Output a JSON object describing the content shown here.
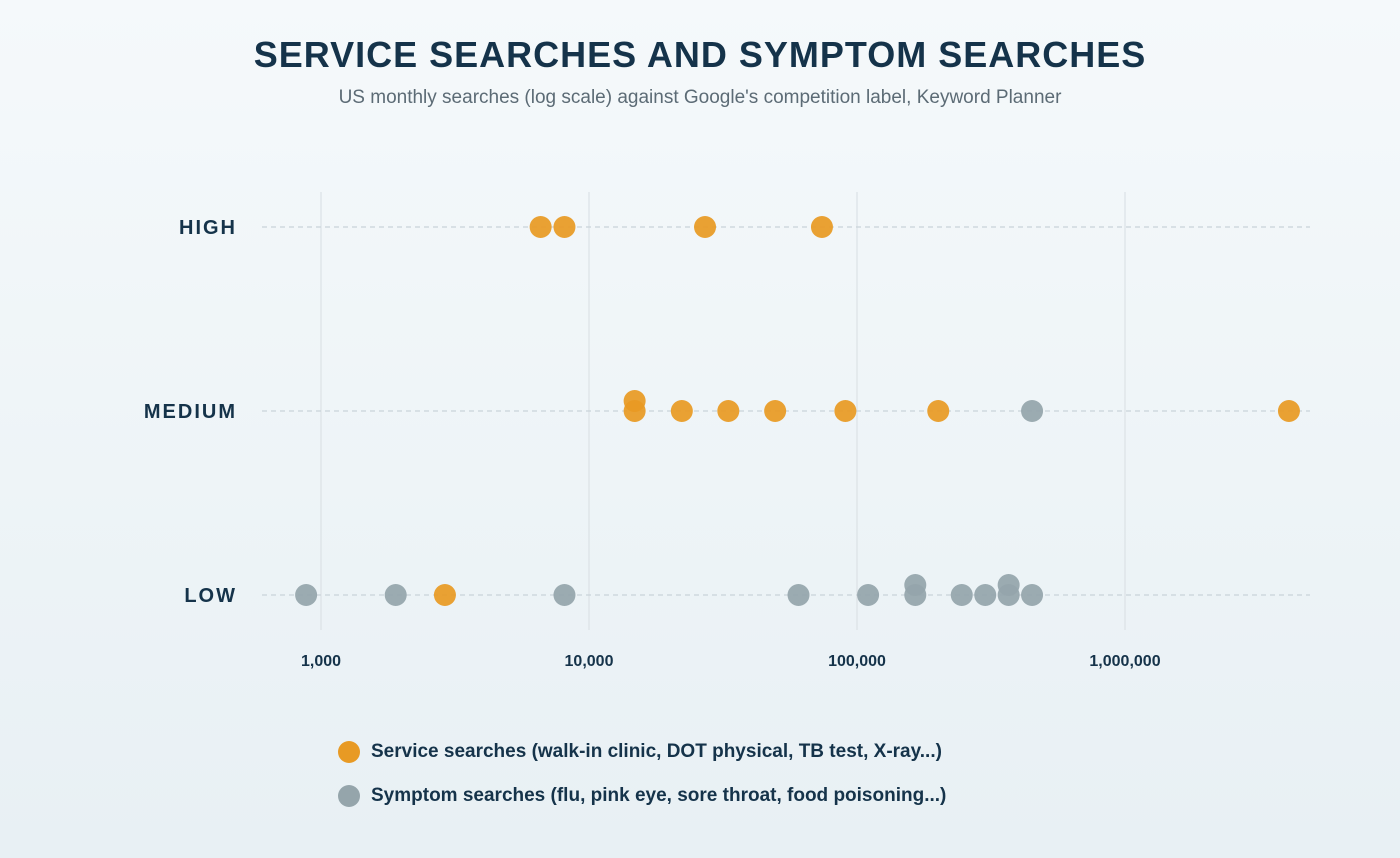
{
  "chart_data": {
    "type": "scatter",
    "title": "SERVICE SEARCHES AND SYMPTOM SEARCHES",
    "subtitle": "US monthly searches (log scale) against Google's competition label, Keyword Planner",
    "x_scale": "log",
    "xlim": [
      550,
      5000000
    ],
    "x_ticks": [
      1000,
      10000,
      100000,
      1000000
    ],
    "x_tick_labels": [
      "1,000",
      "10,000",
      "100,000",
      "1,000,000"
    ],
    "categories": [
      "HIGH",
      "MEDIUM",
      "LOW"
    ],
    "grid": "vertical lines at x ticks; dashed horizontal lines at categories",
    "legend_position": "bottom",
    "series": [
      {
        "name": "Service searches (walk-in clinic, DOT physical, TB test, X-ray...)",
        "color": "#e89a24",
        "points": [
          {
            "x": 6600,
            "y": "HIGH"
          },
          {
            "x": 8100,
            "y": "HIGH"
          },
          {
            "x": 27100,
            "y": "HIGH"
          },
          {
            "x": 74000,
            "y": "HIGH"
          },
          {
            "x": 14800,
            "y": "MEDIUM"
          },
          {
            "x": 14800,
            "y": "MEDIUM"
          },
          {
            "x": 22200,
            "y": "MEDIUM"
          },
          {
            "x": 33100,
            "y": "MEDIUM"
          },
          {
            "x": 49500,
            "y": "MEDIUM"
          },
          {
            "x": 90500,
            "y": "MEDIUM"
          },
          {
            "x": 201000,
            "y": "MEDIUM"
          },
          {
            "x": 4090000,
            "y": "MEDIUM"
          },
          {
            "x": 2900,
            "y": "LOW"
          }
        ]
      },
      {
        "name": "Symptom searches (flu, pink eye, sore throat, food poisoning...)",
        "color": "#95a5ab",
        "points": [
          {
            "x": 450000,
            "y": "MEDIUM"
          },
          {
            "x": 880,
            "y": "LOW"
          },
          {
            "x": 1900,
            "y": "LOW"
          },
          {
            "x": 8100,
            "y": "LOW"
          },
          {
            "x": 60500,
            "y": "LOW"
          },
          {
            "x": 110000,
            "y": "LOW"
          },
          {
            "x": 165000,
            "y": "LOW"
          },
          {
            "x": 165000,
            "y": "LOW"
          },
          {
            "x": 246000,
            "y": "LOW"
          },
          {
            "x": 301000,
            "y": "LOW"
          },
          {
            "x": 368000,
            "y": "LOW"
          },
          {
            "x": 368000,
            "y": "LOW"
          },
          {
            "x": 450000,
            "y": "LOW"
          }
        ]
      }
    ]
  }
}
